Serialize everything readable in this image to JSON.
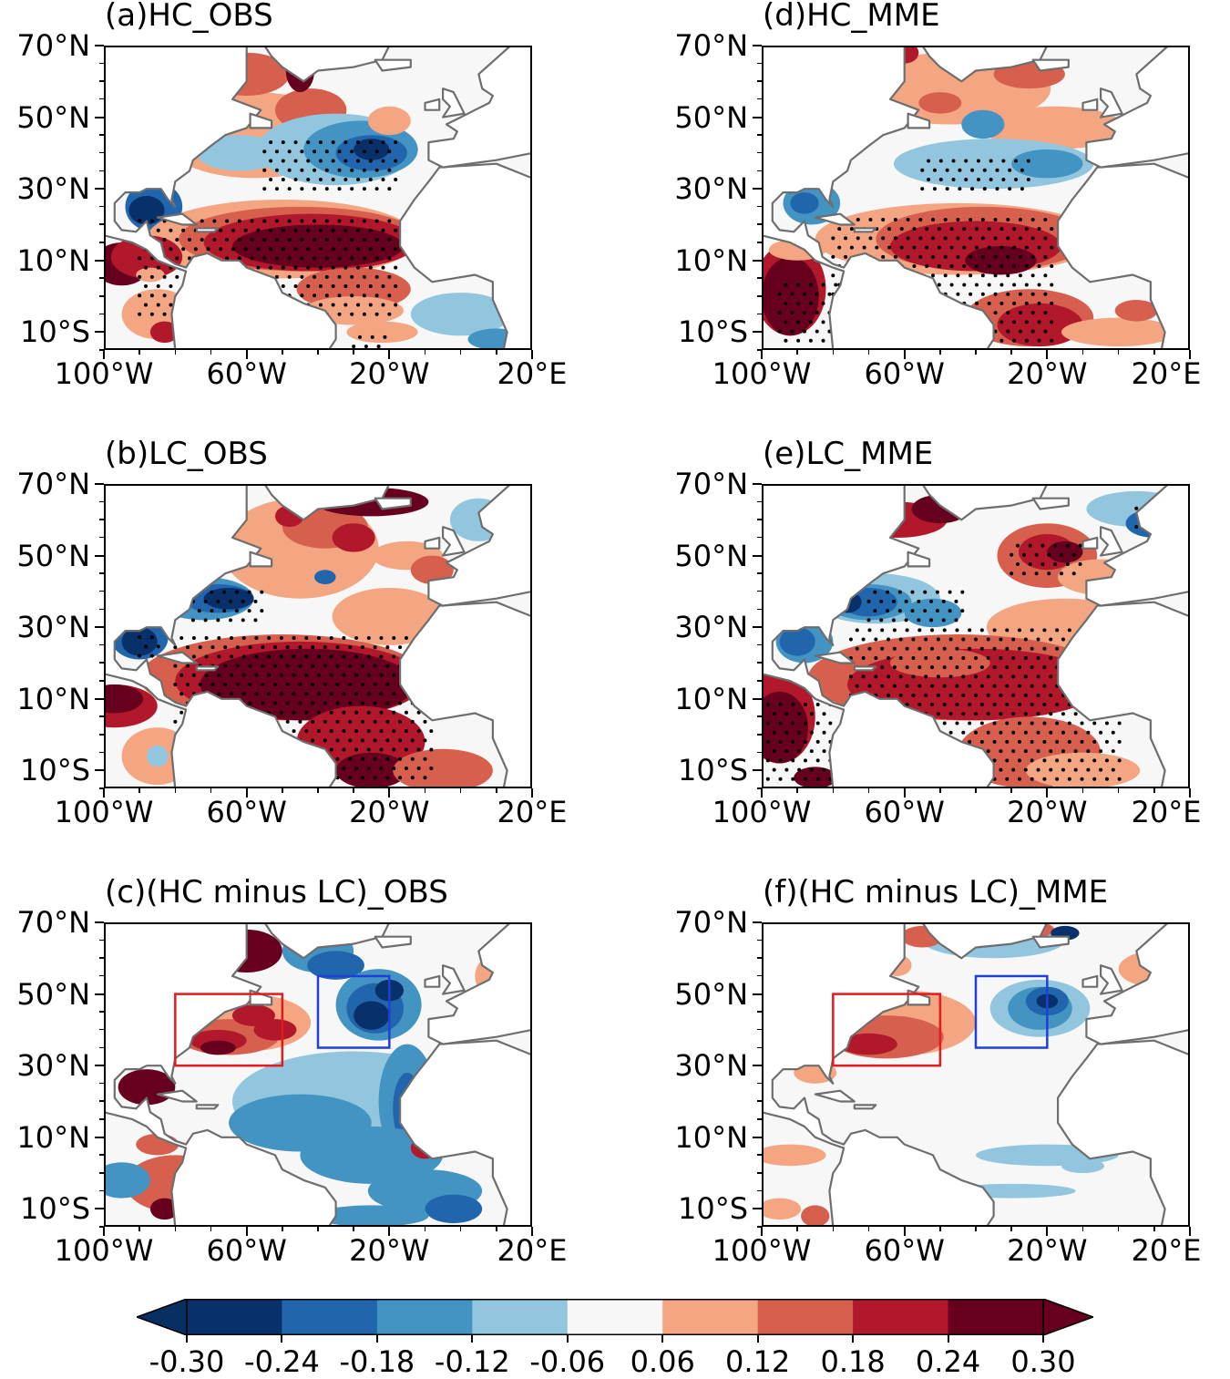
{
  "panels": [
    {
      "id": "a",
      "title": "(a)HC_OBS"
    },
    {
      "id": "b",
      "title": "(b)LC_OBS"
    },
    {
      "id": "c",
      "title": "(c)(HC minus LC)_OBS"
    },
    {
      "id": "d",
      "title": "(d)HC_MME"
    },
    {
      "id": "e",
      "title": "(e)LC_MME"
    },
    {
      "id": "f",
      "title": "(f)(HC minus LC)_MME"
    }
  ],
  "axes": {
    "lat_labels": [
      "70°N",
      "50°N",
      "30°N",
      "10°N",
      "10°S"
    ],
    "lon_labels": [
      "100°W",
      "60°W",
      "20°W",
      "20°E"
    ]
  },
  "colorbar": {
    "levels": [
      "-0.30",
      "-0.24",
      "-0.18",
      "-0.12",
      "-0.06",
      "0.06",
      "0.12",
      "0.18",
      "0.24",
      "0.30"
    ],
    "colors": [
      "#08306b",
      "#2166ac",
      "#4393c3",
      "#92c5de",
      "#f7f7f7",
      "#f4a582",
      "#d6604d",
      "#b2182b",
      "#67001f"
    ],
    "low_extend_color": "#053061",
    "high_extend_color": "#67001f"
  },
  "boxes": {
    "red": "#e41a1c",
    "blue": "#1f3fd8"
  },
  "colors": {
    "coast": "#6e6e6e",
    "land": "#ffffff",
    "sea_neutral": "#f7f7f7"
  }
}
